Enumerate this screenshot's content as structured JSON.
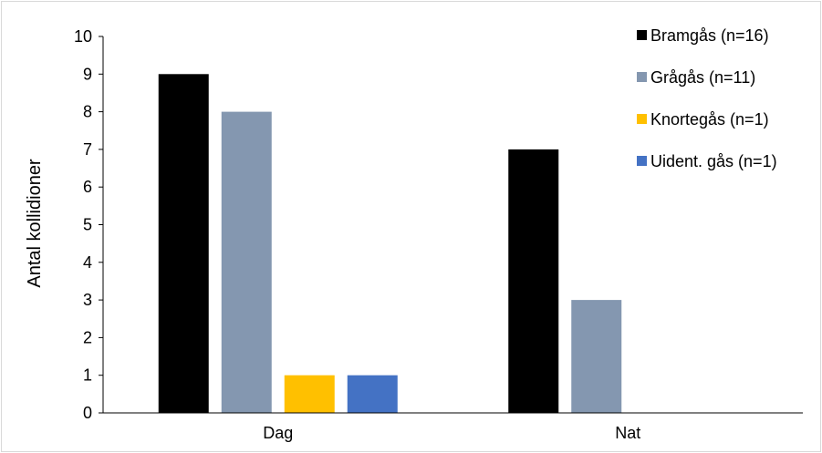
{
  "chart_data": {
    "type": "bar",
    "title": "",
    "xlabel": "",
    "ylabel": "Antal kollidioner",
    "ylim": [
      0,
      10
    ],
    "yticks": [
      "0",
      "1",
      "2",
      "3",
      "4",
      "5",
      "6",
      "7",
      "8",
      "9",
      "10"
    ],
    "categories": [
      "Dag",
      "Nat"
    ],
    "grid": false,
    "legend_position": "top-right",
    "series": [
      {
        "name": "Bramgås (n=16)",
        "color": "#000000",
        "values": [
          9,
          7
        ]
      },
      {
        "name": "Grågås (n=11)",
        "color": "#8497b0",
        "values": [
          8,
          3
        ]
      },
      {
        "name": "Knortegås (n=1)",
        "color": "#ffc000",
        "values": [
          1,
          0
        ]
      },
      {
        "name": "Uident. gås (n=1)",
        "color": "#4472c4",
        "values": [
          1,
          0
        ]
      }
    ]
  }
}
